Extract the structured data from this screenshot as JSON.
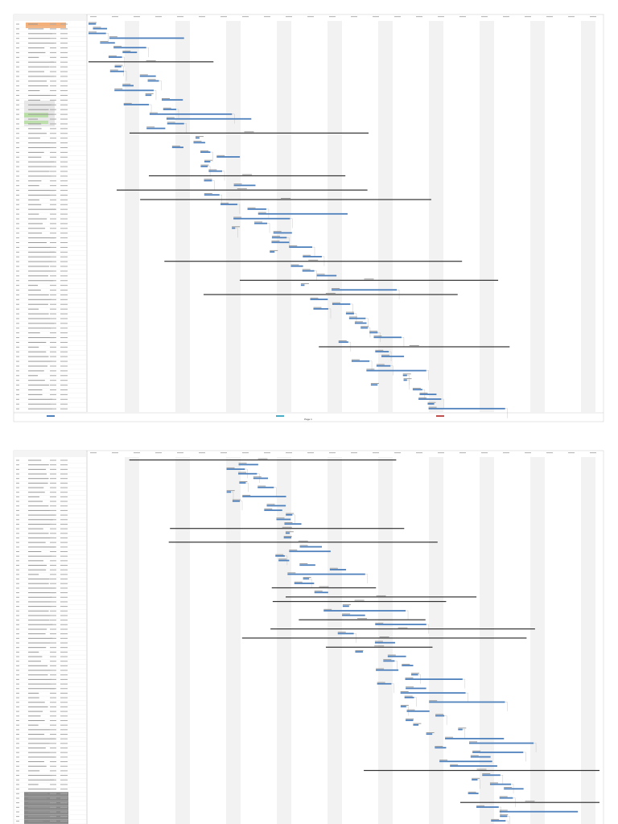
{
  "pages": [
    {
      "footer": "Page 1"
    }
  ]
}
